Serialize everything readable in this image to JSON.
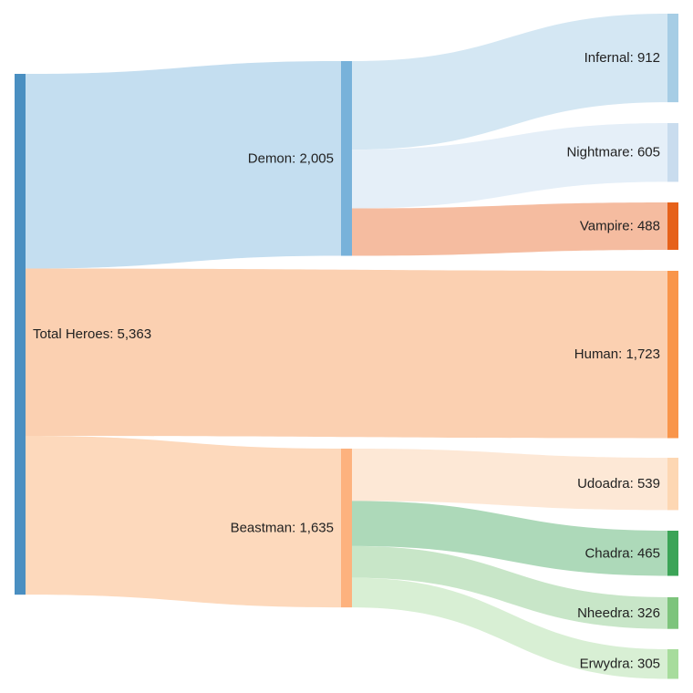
{
  "chart_data": {
    "type": "sankey",
    "nodes": [
      {
        "id": "total",
        "label": "Total Heroes: 5,363",
        "name": "Total Heroes",
        "value": 5363,
        "color": "#4a8fc1"
      },
      {
        "id": "demon",
        "label": "Demon: 2,005",
        "name": "Demon",
        "value": 2005,
        "color": "#78b2da"
      },
      {
        "id": "beastman",
        "label": "Beastman: 1,635",
        "name": "Beastman",
        "value": 1635,
        "color": "#fdb27e"
      },
      {
        "id": "infernal",
        "label": "Infernal: 912",
        "name": "Infernal",
        "value": 912,
        "color": "#a6cde5"
      },
      {
        "id": "nightmare",
        "label": "Nightmare: 605",
        "name": "Nightmare",
        "value": 605,
        "color": "#c9dcee"
      },
      {
        "id": "vampire",
        "label": "Vampire: 488",
        "name": "Vampire",
        "value": 488,
        "color": "#e6611a"
      },
      {
        "id": "human",
        "label": "Human: 1,723",
        "name": "Human",
        "value": 1723,
        "color": "#f9954a"
      },
      {
        "id": "udoadra",
        "label": "Udoadra: 539",
        "name": "Udoadra",
        "value": 539,
        "color": "#fdd7b3"
      },
      {
        "id": "chadra",
        "label": "Chadra: 465",
        "name": "Chadra",
        "value": 465,
        "color": "#3ba457"
      },
      {
        "id": "nheedra",
        "label": "Nheedra: 326",
        "name": "Nheedra",
        "value": 326,
        "color": "#7dc47c"
      },
      {
        "id": "erwydra",
        "label": "Erwydra: 305",
        "name": "Erwydra",
        "value": 305,
        "color": "#a7dc9c"
      }
    ],
    "links": [
      {
        "source": "total",
        "target": "demon",
        "value": 2005,
        "color": "#c4def0"
      },
      {
        "source": "total",
        "target": "human",
        "value": 1723,
        "color": "#fbd0b1"
      },
      {
        "source": "total",
        "target": "beastman",
        "value": 1635,
        "color": "#fdd9bc"
      },
      {
        "source": "demon",
        "target": "infernal",
        "value": 912,
        "color": "#d4e7f3"
      },
      {
        "source": "demon",
        "target": "nightmare",
        "value": 605,
        "color": "#e5eff8"
      },
      {
        "source": "demon",
        "target": "vampire",
        "value": 488,
        "color": "#f5bca0"
      },
      {
        "source": "beastman",
        "target": "udoadra",
        "value": 539,
        "color": "#fde8d6"
      },
      {
        "source": "beastman",
        "target": "chadra",
        "value": 465,
        "color": "#add9b9"
      },
      {
        "source": "beastman",
        "target": "nheedra",
        "value": 326,
        "color": "#c8e6c8"
      },
      {
        "source": "beastman",
        "target": "erwydra",
        "value": 305,
        "color": "#d8efd4"
      }
    ]
  }
}
